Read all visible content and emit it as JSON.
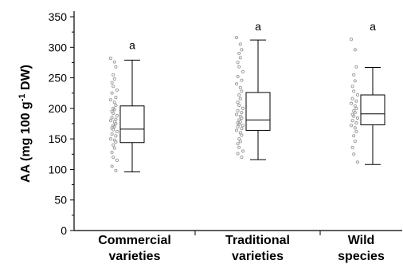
{
  "chart_data": {
    "type": "box",
    "ylabel_parts": [
      "AA (mg 100 g",
      "-1",
      " DW)"
    ],
    "ylim": [
      0,
      350
    ],
    "yticks": [
      0,
      50,
      100,
      150,
      200,
      250,
      300,
      350
    ],
    "categories": [
      {
        "lines": [
          "Commercial",
          "varieties"
        ],
        "letter": "a",
        "box": {
          "min": 96,
          "q1": 144,
          "median": 166,
          "q3": 204,
          "max": 279
        },
        "points": [
          282,
          276,
          268,
          255,
          248,
          242,
          236,
          230,
          225,
          218,
          214,
          210,
          205,
          200,
          198,
          195,
          192,
          188,
          185,
          182,
          180,
          178,
          175,
          172,
          170,
          168,
          165,
          162,
          158,
          155,
          150,
          148,
          145,
          140,
          135,
          128,
          120,
          115,
          105,
          98
        ]
      },
      {
        "lines": [
          "Traditional",
          "varieties"
        ],
        "letter": "a",
        "box": {
          "min": 116,
          "q1": 164,
          "median": 181,
          "q3": 226,
          "max": 312
        },
        "points": [
          316,
          305,
          296,
          290,
          283,
          275,
          268,
          260,
          252,
          246,
          240,
          234,
          228,
          222,
          216,
          210,
          205,
          200,
          196,
          193,
          190,
          187,
          184,
          181,
          178,
          176,
          174,
          172,
          170,
          167,
          164,
          160,
          156,
          150,
          146,
          142,
          136,
          130,
          126,
          120
        ]
      },
      {
        "lines": [
          "Wild",
          "species"
        ],
        "letter": "a",
        "box": {
          "min": 108,
          "q1": 173,
          "median": 191,
          "q3": 222,
          "max": 267
        },
        "points": [
          313,
          296,
          268,
          255,
          245,
          236,
          228,
          222,
          216,
          212,
          208,
          204,
          200,
          196,
          193,
          190,
          187,
          184,
          180,
          176,
          172,
          168,
          162,
          155,
          146,
          136,
          125,
          112
        ]
      }
    ],
    "colors": {
      "axis": "#000000",
      "box": "#000000",
      "points": "#9a9a9a"
    }
  }
}
